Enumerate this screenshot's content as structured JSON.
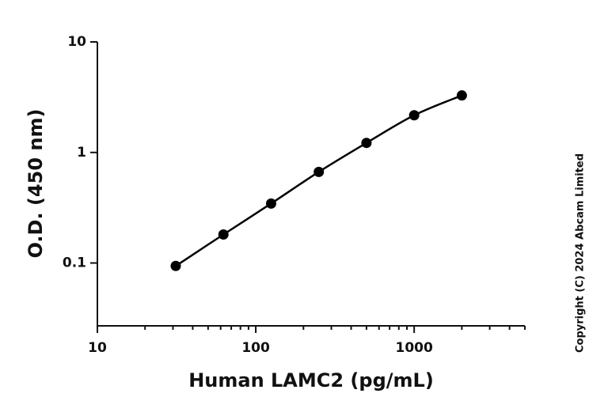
{
  "chart_data": {
    "type": "scatter",
    "x_label": "Human LAMC2 (pg/mL)",
    "y_label": "O.D. (450 nm)",
    "annotation": "Copyright (C) 2024 Abcam Limited",
    "log_x": true,
    "log_y": true,
    "xlim": [
      10,
      5000
    ],
    "ylim": [
      0.027,
      10
    ],
    "xticks": [
      10,
      100,
      1000
    ],
    "x_minor_ticks": [
      20,
      30,
      40,
      50,
      60,
      70,
      80,
      90,
      200,
      300,
      400,
      500,
      600,
      700,
      800,
      900,
      2000,
      3000,
      4000,
      5000
    ],
    "yticks": [
      0.1,
      1,
      10
    ],
    "series": [
      {
        "color": "#000000",
        "x": [
          31.25,
          62.5,
          125,
          250,
          500,
          1000,
          2000
        ],
        "values": [
          0.094,
          0.181,
          0.345,
          0.667,
          1.22,
          2.17,
          3.28
        ]
      }
    ]
  }
}
